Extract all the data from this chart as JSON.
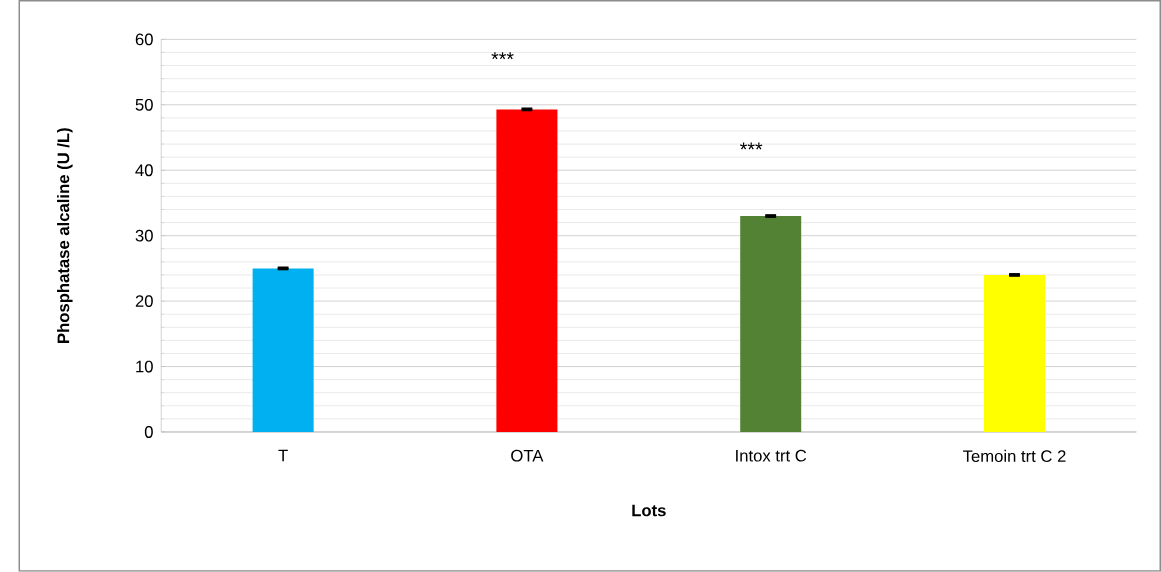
{
  "chart_data": {
    "type": "bar",
    "xlabel": "Lots",
    "ylabel": "Phosphatase alcaline (U /L)",
    "categories": [
      "T",
      "OTA",
      "Intox trt C",
      "Temoin trt C 2"
    ],
    "values": [
      25,
      49.3,
      33,
      24
    ],
    "errors": [
      0.1,
      0.1,
      0.1,
      0.1
    ],
    "colors": [
      "#00b0f0",
      "#ff0000",
      "#548235",
      "#ffff00"
    ],
    "ylim": [
      0,
      60
    ],
    "yticks": [
      0,
      10,
      20,
      30,
      40,
      50,
      60
    ],
    "grid": "y",
    "annotations": [
      "***",
      "***"
    ]
  }
}
